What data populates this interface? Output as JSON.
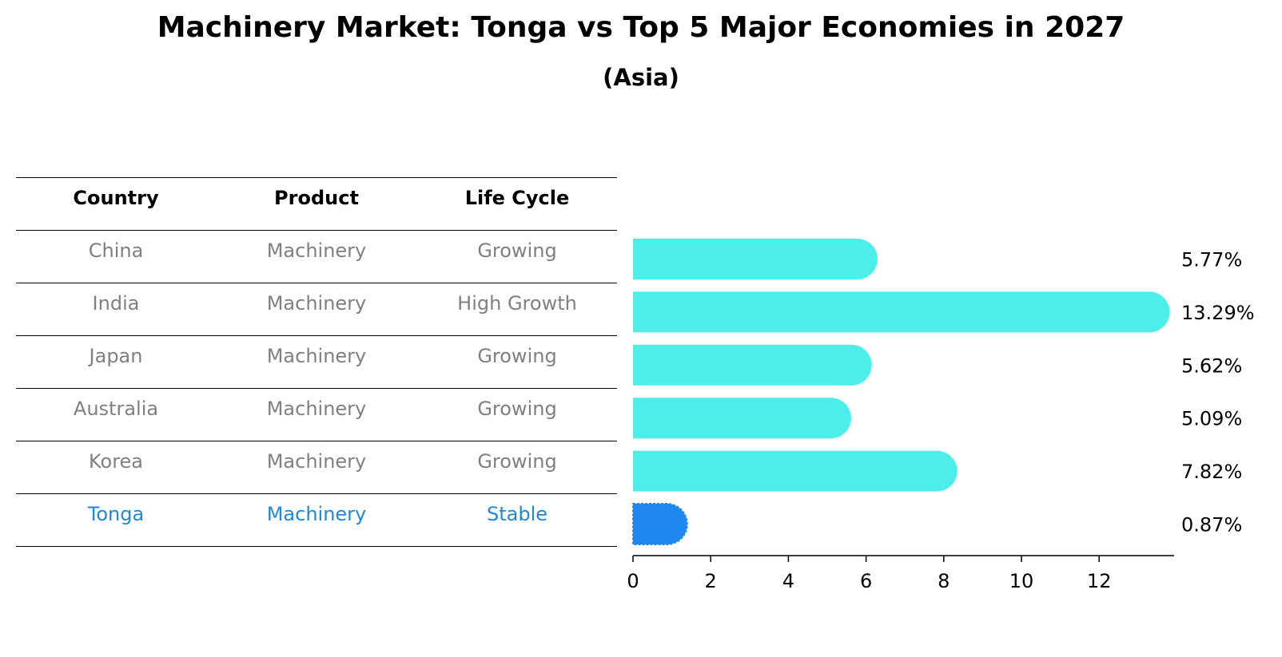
{
  "title": "Machinery Market: Tonga vs Top 5 Major Economies in 2027",
  "subtitle": "(Asia)",
  "table": {
    "headers": [
      "Country",
      "Product",
      "Life Cycle"
    ],
    "rows": [
      [
        "China",
        "Machinery",
        "Growing"
      ],
      [
        "India",
        "Machinery",
        "High Growth"
      ],
      [
        "Japan",
        "Machinery",
        "Growing"
      ],
      [
        "Australia",
        "Machinery",
        "Growing"
      ],
      [
        "Korea",
        "Machinery",
        "Growing"
      ],
      [
        "Tonga",
        "Machinery",
        "Stable"
      ]
    ],
    "highlight_row": 5
  },
  "chart_data": {
    "type": "bar",
    "orientation": "horizontal",
    "categories": [
      "China",
      "India",
      "Japan",
      "Australia",
      "Korea",
      "Tonga"
    ],
    "values": [
      5.77,
      13.29,
      5.62,
      5.09,
      7.82,
      0.87
    ],
    "value_labels": [
      "5.77%",
      "13.29%",
      "5.62%",
      "5.09%",
      "7.82%",
      "0.87%"
    ],
    "xlim": [
      0,
      14
    ],
    "xticks": [
      0,
      2,
      4,
      6,
      8,
      10,
      12
    ],
    "xlabel": "",
    "ylabel": "",
    "grid": false,
    "highlight": "Tonga"
  },
  "colors": {
    "bar": "#4deeea",
    "highlight": "#1f88f0",
    "highlight_text": "#1f88d8",
    "muted_text": "#808080"
  }
}
